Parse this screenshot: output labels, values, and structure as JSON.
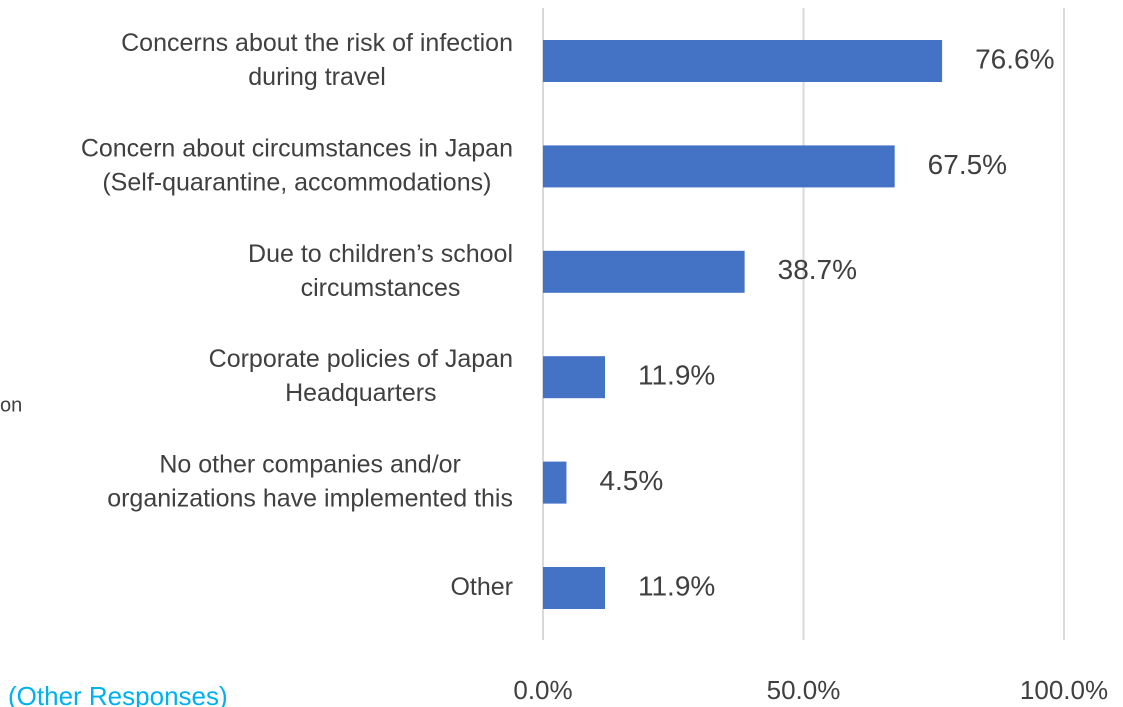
{
  "chart_data": {
    "type": "bar",
    "orientation": "horizontal",
    "categories": [
      "Concerns about the risk of infection\nduring travel",
      "Concern about circumstances in Japan\n(Self-quarantine, accommodations)",
      "Due to children’s school\ncircumstances",
      "Corporate policies of Japan\nHeadquarters",
      "No other companies and/or\norganizations have implemented this",
      "Other"
    ],
    "values": [
      76.6,
      67.5,
      38.7,
      11.9,
      4.5,
      11.9
    ],
    "value_labels": [
      "76.6%",
      "67.5%",
      "38.7%",
      "11.9%",
      "4.5%",
      "11.9%"
    ],
    "color": "#4472c4",
    "xlim": [
      0,
      100
    ],
    "xticks": [
      {
        "value": 0,
        "label": "0.0%"
      },
      {
        "value": 50,
        "label": "50.0%"
      },
      {
        "value": 100,
        "label": "100.0%"
      }
    ],
    "grid": true,
    "annotations": [
      "on",
      "(Other Responses)"
    ]
  }
}
